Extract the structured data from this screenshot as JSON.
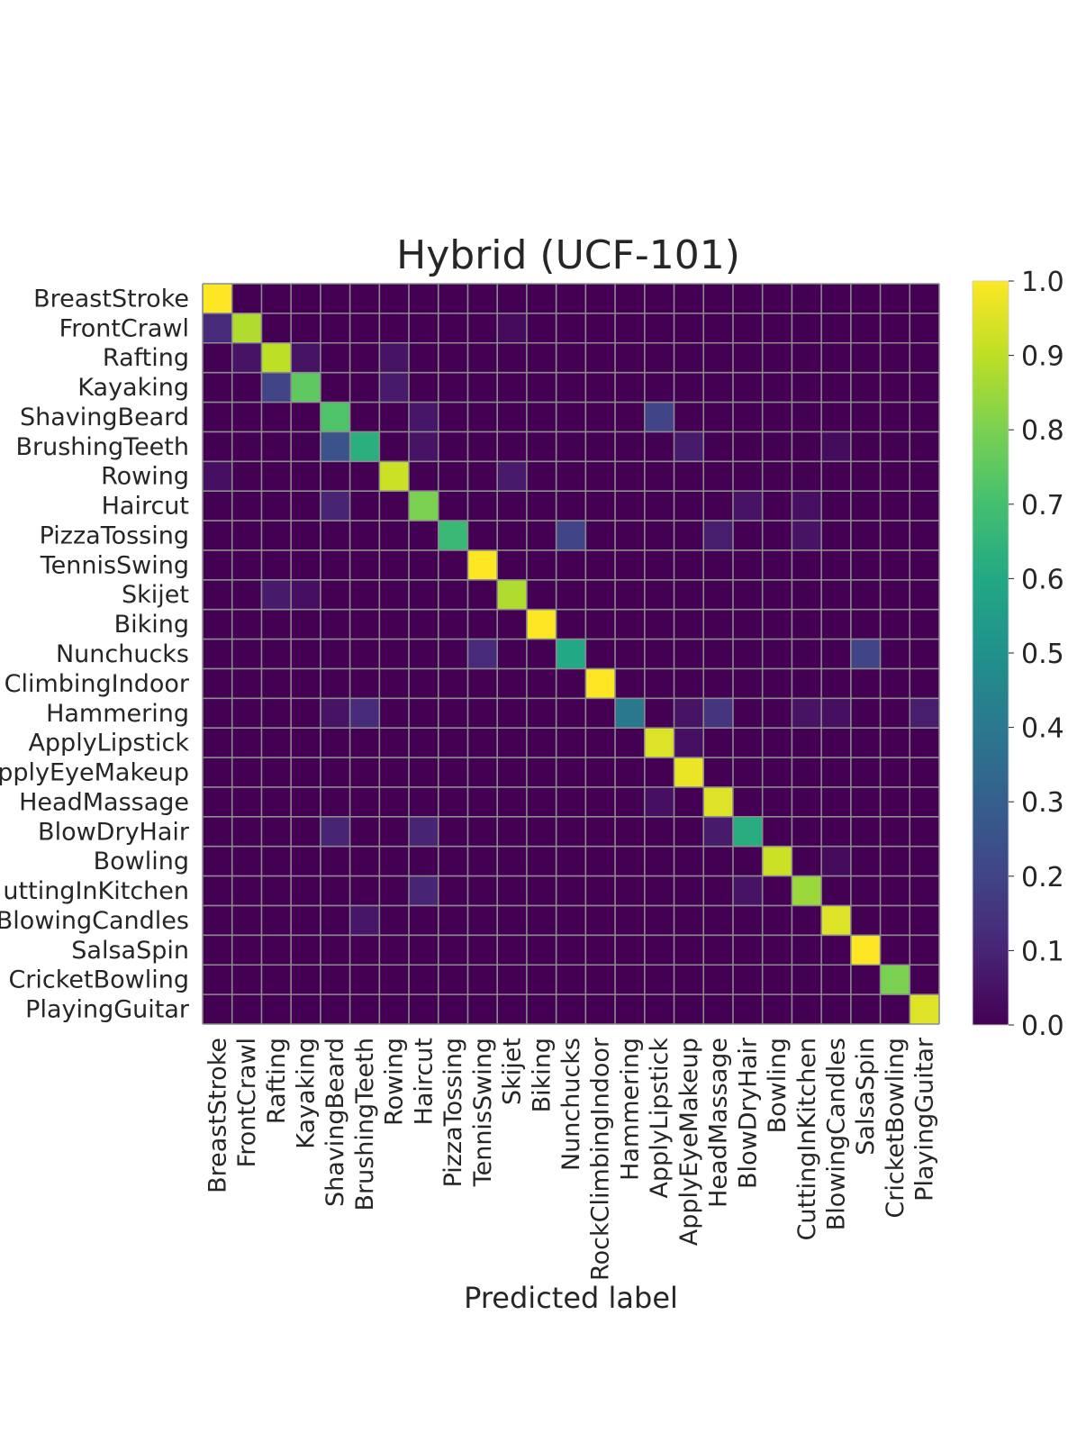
{
  "chart_data": {
    "type": "heatmap",
    "title": "Hybrid (UCF-101)",
    "xlabel": "Predicted label",
    "ylabel": "",
    "categories": [
      "BreastStroke",
      "FrontCrawl",
      "Rafting",
      "Kayaking",
      "ShavingBeard",
      "BrushingTeeth",
      "Rowing",
      "Haircut",
      "PizzaTossing",
      "TennisSwing",
      "Skijet",
      "Biking",
      "Nunchucks",
      "RockClimbingIndoor",
      "Hammering",
      "ApplyLipstick",
      "ApplyEyeMakeup",
      "HeadMassage",
      "BlowDryHair",
      "Bowling",
      "CuttingInKitchen",
      "BlowingCandles",
      "SalsaSpin",
      "CricketBowling",
      "PlayingGuitar"
    ],
    "y_tick_labels_visible": [
      "BreastStroke",
      "FrontCrawl",
      "Rafting",
      "Kayaking",
      "ShavingBeard",
      "BrushingTeeth",
      "Rowing",
      "Haircut",
      "PizzaTossing",
      "TennisSwing",
      "Skijet",
      "Biking",
      "Nunchucks",
      "ClimbingIndoor",
      "Hammering",
      "ApplyLipstick",
      "pplyEyeMakeup",
      "HeadMassage",
      "BlowDryHair",
      "Bowling",
      "uttingInKitchen",
      "BlowingCandles",
      "SalsaSpin",
      "CricketBowling",
      "PlayingGuitar"
    ],
    "colormap": "viridis",
    "colorbar": {
      "min": 0.0,
      "max": 1.0,
      "ticks": [
        "0.0",
        "0.1",
        "0.2",
        "0.3",
        "0.4",
        "0.5",
        "0.6",
        "0.7",
        "0.8",
        "0.9",
        "1.0"
      ]
    },
    "grid_color": "#8c8c8c",
    "matrix": [
      [
        1.0,
        0,
        0,
        0,
        0,
        0,
        0,
        0,
        0,
        0,
        0,
        0,
        0,
        0,
        0,
        0,
        0,
        0,
        0,
        0,
        0,
        0,
        0,
        0,
        0
      ],
      [
        0.12,
        0.88,
        0,
        0,
        0,
        0,
        0,
        0,
        0,
        0,
        0.03,
        0,
        0,
        0,
        0,
        0,
        0,
        0,
        0,
        0,
        0,
        0,
        0,
        0,
        0
      ],
      [
        0,
        0.05,
        0.9,
        0.05,
        0,
        0,
        0.05,
        0,
        0,
        0,
        0,
        0,
        0,
        0,
        0,
        0,
        0,
        0,
        0,
        0,
        0,
        0,
        0,
        0,
        0
      ],
      [
        0,
        0,
        0.2,
        0.75,
        0,
        0,
        0.07,
        0,
        0,
        0,
        0,
        0,
        0,
        0,
        0,
        0,
        0,
        0,
        0,
        0,
        0,
        0,
        0,
        0,
        0
      ],
      [
        0,
        0,
        0,
        0,
        0.72,
        0,
        0,
        0.06,
        0,
        0,
        0,
        0,
        0,
        0,
        0,
        0.2,
        0,
        0,
        0,
        0,
        0,
        0,
        0,
        0,
        0
      ],
      [
        0,
        0,
        0,
        0,
        0.25,
        0.63,
        0,
        0.05,
        0,
        0,
        0,
        0,
        0,
        0,
        0,
        0,
        0.07,
        0,
        0,
        0,
        0,
        0.03,
        0,
        0,
        0
      ],
      [
        0.04,
        0,
        0,
        0,
        0,
        0,
        0.92,
        0,
        0,
        0,
        0.07,
        0,
        0,
        0,
        0,
        0,
        0,
        0,
        0,
        0,
        0,
        0,
        0,
        0,
        0
      ],
      [
        0,
        0,
        0,
        0,
        0.1,
        0,
        0,
        0.8,
        0,
        0,
        0,
        0,
        0,
        0,
        0,
        0,
        0,
        0,
        0.05,
        0,
        0.04,
        0,
        0,
        0,
        0
      ],
      [
        0,
        0,
        0,
        0,
        0,
        0,
        0,
        0,
        0.67,
        0,
        0,
        0,
        0.2,
        0,
        0,
        0,
        0,
        0.08,
        0,
        0,
        0.05,
        0,
        0,
        0,
        0
      ],
      [
        0,
        0,
        0,
        0,
        0,
        0,
        0,
        0,
        0,
        1.0,
        0,
        0,
        0,
        0,
        0,
        0,
        0,
        0,
        0,
        0,
        0,
        0,
        0,
        0,
        0
      ],
      [
        0,
        0,
        0.07,
        0.04,
        0,
        0,
        0,
        0,
        0,
        0,
        0.88,
        0,
        0,
        0,
        0,
        0,
        0,
        0,
        0,
        0,
        0,
        0,
        0,
        0,
        0
      ],
      [
        0,
        0,
        0,
        0,
        0,
        0,
        0,
        0,
        0,
        0,
        0,
        1.0,
        0,
        0,
        0,
        0,
        0,
        0,
        0,
        0,
        0,
        0,
        0,
        0,
        0
      ],
      [
        0,
        0,
        0,
        0,
        0,
        0,
        0,
        0,
        0,
        0.12,
        0,
        0,
        0.6,
        0,
        0,
        0,
        0,
        0,
        0,
        0,
        0,
        0,
        0.2,
        0,
        0
      ],
      [
        0,
        0,
        0,
        0,
        0,
        0,
        0,
        0,
        0,
        0,
        0,
        0,
        0,
        1.0,
        0,
        0,
        0,
        0,
        0,
        0,
        0,
        0,
        0,
        0,
        0
      ],
      [
        0,
        0,
        0,
        0,
        0.05,
        0.12,
        0,
        0,
        0,
        0,
        0,
        0,
        0,
        0,
        0.4,
        0,
        0.05,
        0.15,
        0,
        0,
        0.05,
        0.04,
        0,
        0,
        0.08
      ],
      [
        0,
        0,
        0,
        0,
        0,
        0,
        0,
        0,
        0,
        0,
        0,
        0,
        0,
        0,
        0,
        0.95,
        0.04,
        0,
        0,
        0,
        0,
        0,
        0,
        0,
        0
      ],
      [
        0,
        0,
        0,
        0,
        0,
        0,
        0,
        0,
        0,
        0,
        0,
        0,
        0,
        0,
        0,
        0,
        0.97,
        0,
        0,
        0,
        0,
        0,
        0,
        0,
        0
      ],
      [
        0,
        0,
        0,
        0,
        0,
        0,
        0,
        0,
        0,
        0,
        0,
        0,
        0,
        0,
        0,
        0.04,
        0,
        0.95,
        0,
        0,
        0,
        0,
        0,
        0,
        0
      ],
      [
        0,
        0,
        0,
        0,
        0.1,
        0,
        0,
        0.1,
        0,
        0,
        0,
        0,
        0,
        0,
        0,
        0,
        0,
        0.07,
        0.62,
        0,
        0,
        0,
        0,
        0,
        0
      ],
      [
        0,
        0,
        0,
        0,
        0,
        0,
        0,
        0,
        0,
        0,
        0,
        0,
        0,
        0,
        0,
        0,
        0,
        0,
        0,
        0.92,
        0,
        0.03,
        0,
        0,
        0
      ],
      [
        0,
        0,
        0,
        0,
        0,
        0,
        0,
        0.1,
        0,
        0,
        0,
        0,
        0,
        0,
        0,
        0,
        0,
        0,
        0.05,
        0,
        0.85,
        0,
        0,
        0,
        0
      ],
      [
        0,
        0,
        0,
        0,
        0,
        0.06,
        0,
        0,
        0,
        0,
        0,
        0,
        0,
        0,
        0,
        0,
        0,
        0,
        0,
        0,
        0,
        0.95,
        0,
        0,
        0
      ],
      [
        0,
        0,
        0,
        0,
        0,
        0,
        0,
        0,
        0,
        0,
        0,
        0,
        0,
        0,
        0,
        0,
        0,
        0,
        0,
        0,
        0,
        0,
        1.0,
        0,
        0
      ],
      [
        0,
        0,
        0,
        0,
        0,
        0,
        0,
        0,
        0,
        0,
        0,
        0,
        0,
        0,
        0,
        0,
        0,
        0,
        0,
        0,
        0,
        0,
        0,
        0.8,
        0
      ],
      [
        0,
        0,
        0,
        0,
        0,
        0,
        0,
        0,
        0,
        0,
        0,
        0,
        0,
        0,
        0,
        0,
        0,
        0,
        0,
        0,
        0,
        0,
        0,
        0,
        0.95
      ]
    ]
  }
}
